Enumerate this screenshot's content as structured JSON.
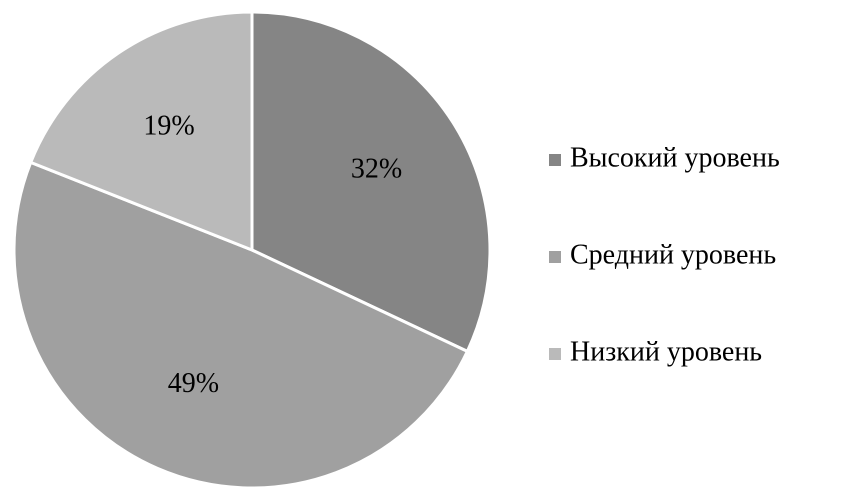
{
  "chart_data": {
    "type": "pie",
    "categories": [
      "Высокий уровень",
      "Средний уровень",
      "Низкий уровень"
    ],
    "values": [
      32,
      49,
      19
    ],
    "value_labels": [
      "32%",
      "49%",
      "19%"
    ],
    "colors": [
      "#858585",
      "#a0a0a0",
      "#bababa"
    ],
    "legend": "right"
  }
}
